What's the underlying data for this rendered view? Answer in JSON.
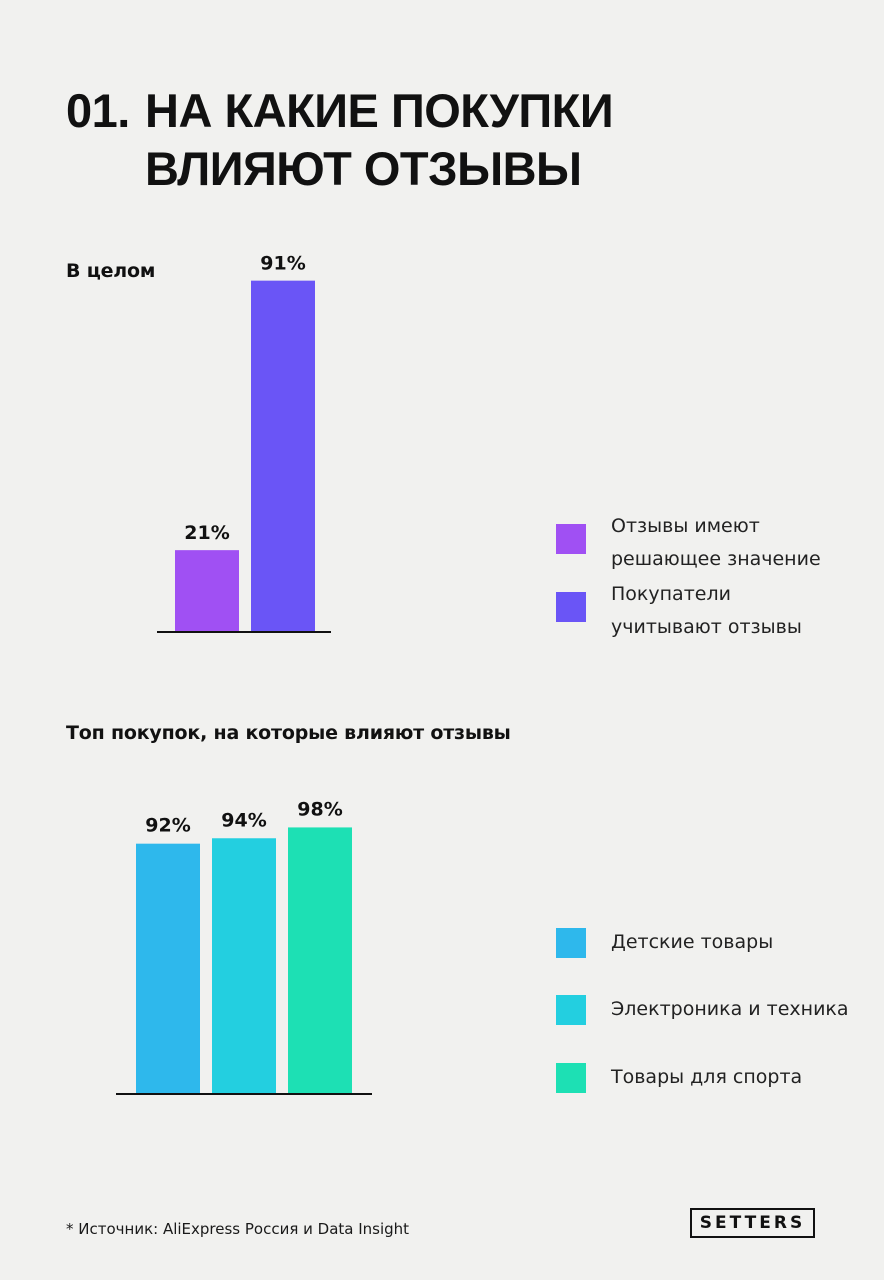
{
  "title": {
    "number": "01.",
    "line1": "НА КАКИЕ ПОКУПКИ",
    "line2": "ВЛИЯЮТ ОТЗЫВЫ"
  },
  "chart_data": [
    {
      "type": "bar",
      "title": "В целом",
      "categories": [
        "Отзывы имеют решающее значение",
        "Покупатели учитывают отзывы"
      ],
      "values": [
        21,
        91
      ],
      "value_labels": [
        "21%",
        "91%"
      ],
      "colors": [
        "#a050f3",
        "#6a55f6"
      ],
      "legend": [
        {
          "label": "Отзывы имеют\nрешающее значение",
          "color": "#a050f3"
        },
        {
          "label": "Покупатели\nучитывают отзывы",
          "color": "#6a55f6"
        }
      ],
      "legend_position": "right",
      "ylim": [
        0,
        100
      ],
      "grid": false
    },
    {
      "type": "bar",
      "title": "Топ покупок, на которые влияют отзывы",
      "categories": [
        "Детские товары",
        "Электроника и техника",
        "Товары для спорта"
      ],
      "values": [
        92,
        94,
        98
      ],
      "value_labels": [
        "92%",
        "94%",
        "98%"
      ],
      "colors": [
        "#2eb8ec",
        "#23cfe0",
        "#1de0b4"
      ],
      "legend": [
        {
          "label": "Детские товары",
          "color": "#2eb8ec"
        },
        {
          "label": "Электроника и техника",
          "color": "#23cfe0"
        },
        {
          "label": "Товары для спорта",
          "color": "#1de0b4"
        }
      ],
      "legend_position": "right",
      "ylim": [
        0,
        100
      ],
      "grid": false
    }
  ],
  "footnote": "* Источник: AliExpress Россия и Data Insight",
  "brand": "SETTERS"
}
